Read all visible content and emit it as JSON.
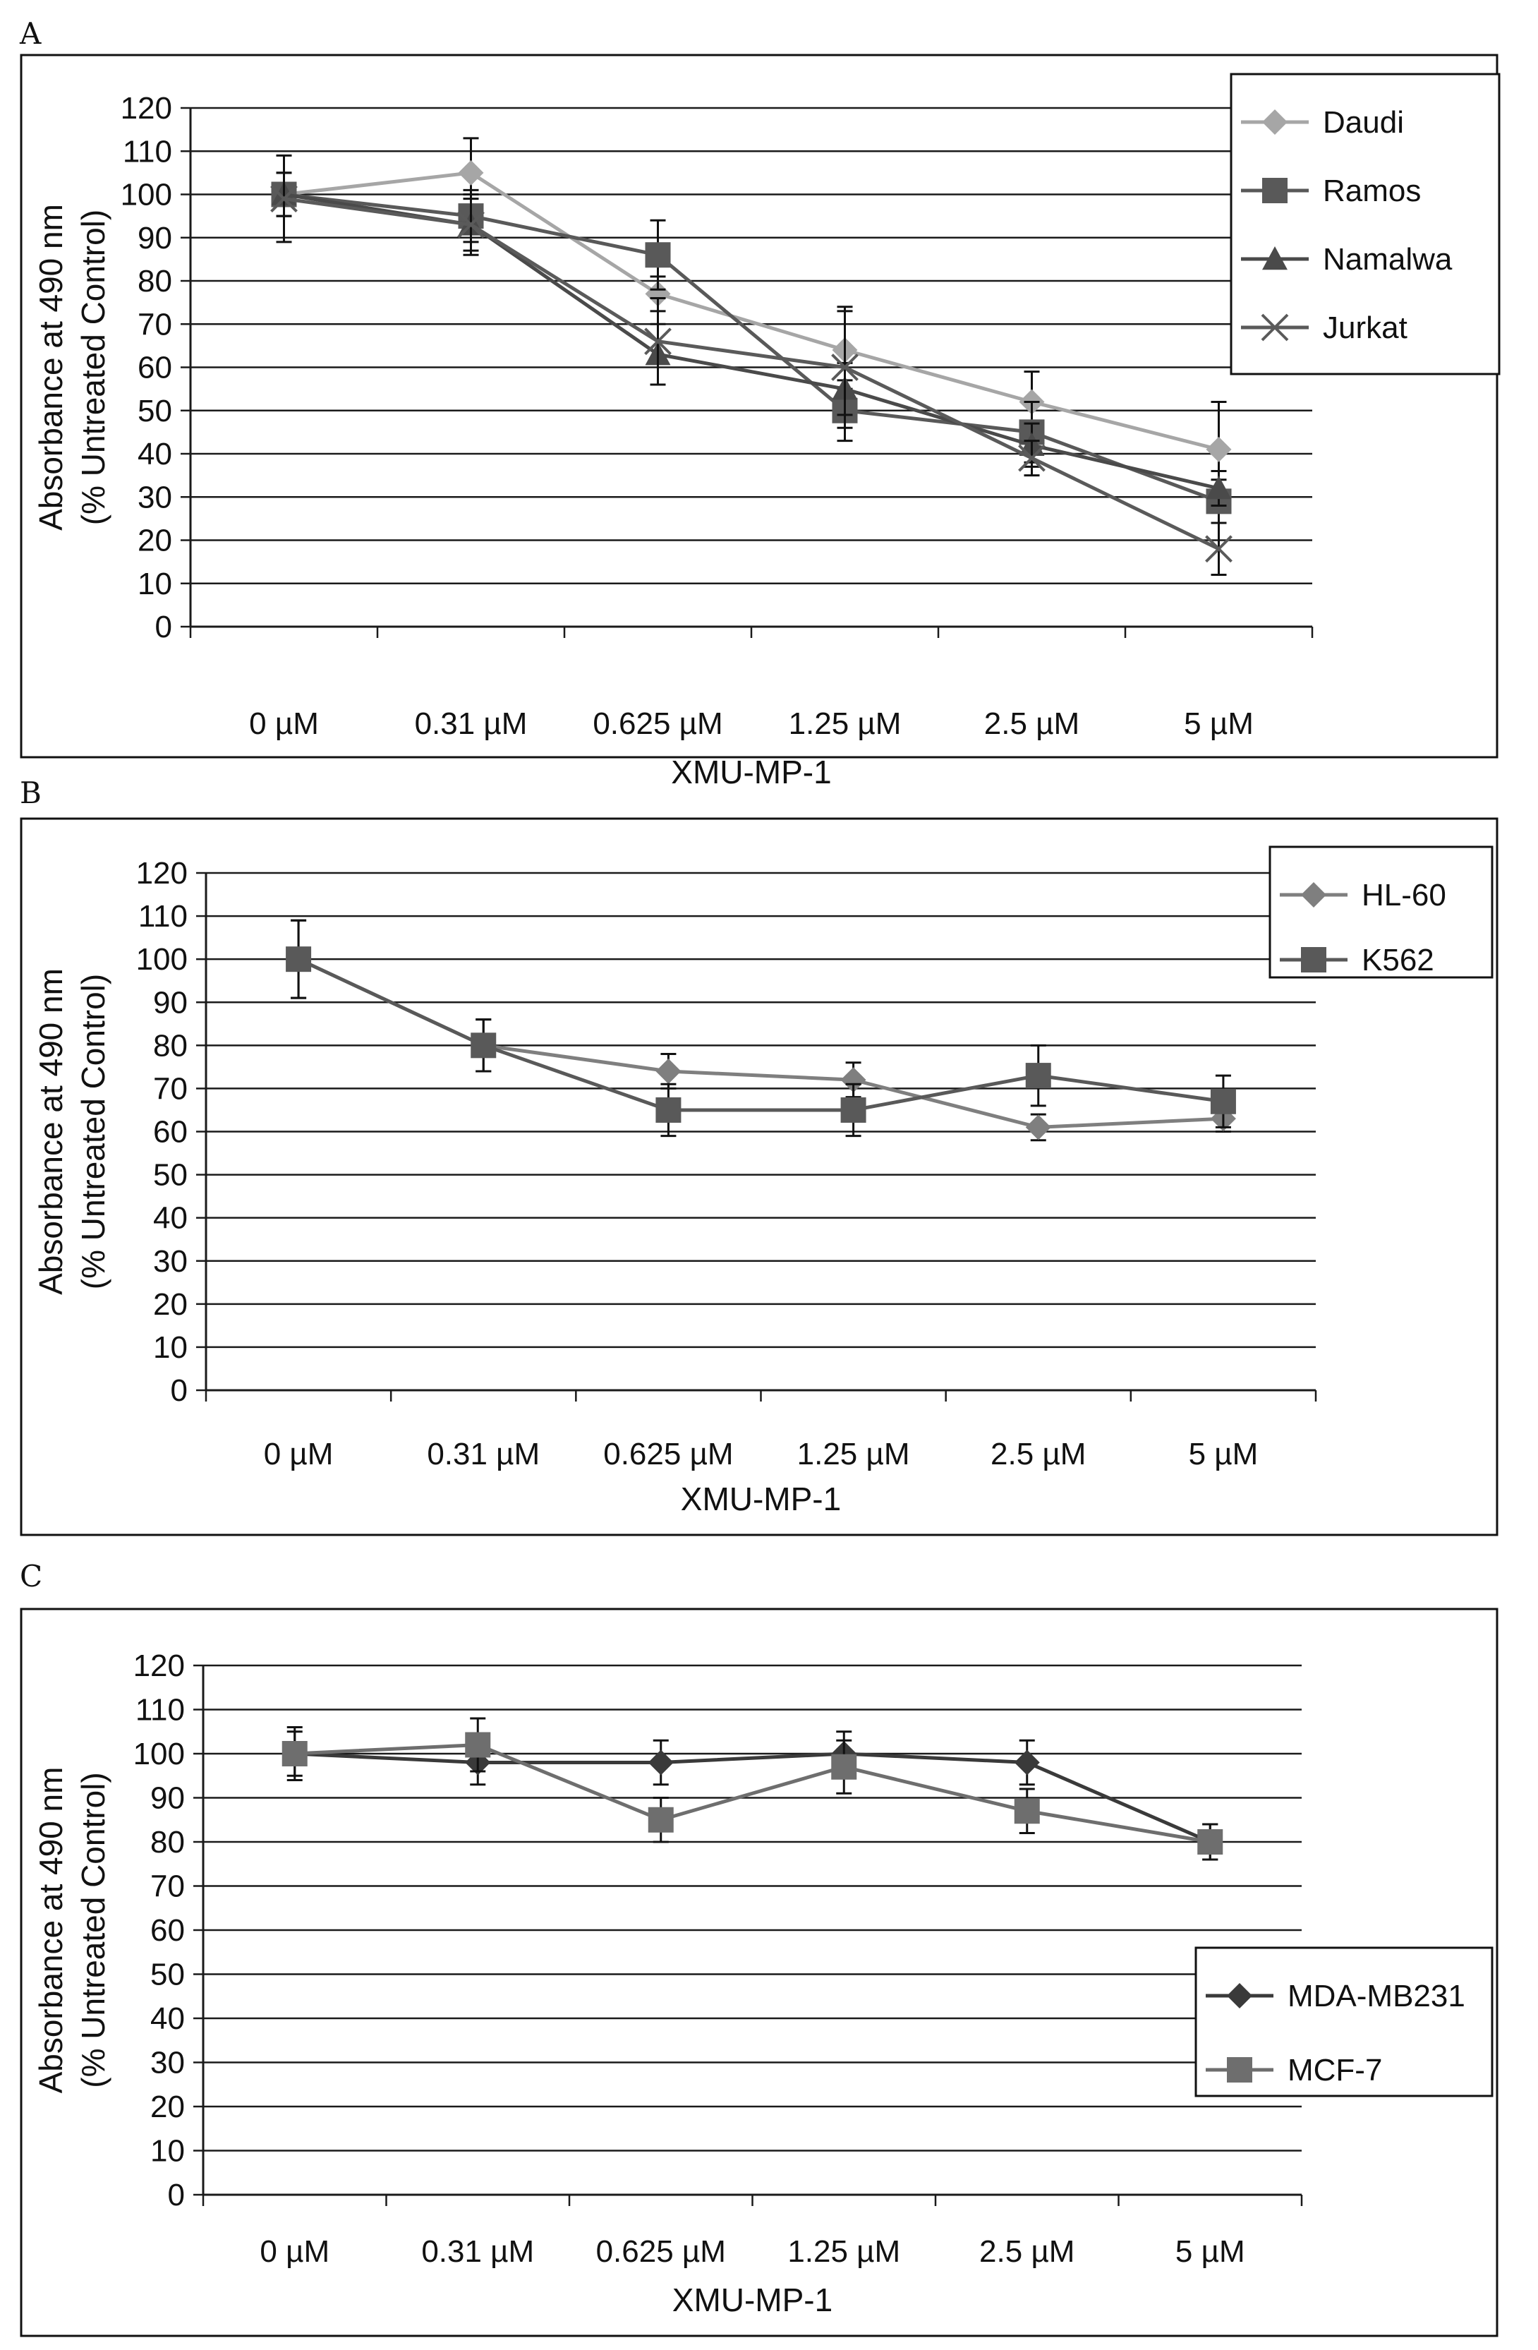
{
  "chart_data": [
    {
      "panel": "A",
      "type": "line",
      "xlabel": "XMU-MP-1",
      "ylabel": "Absorbance at 490 nm",
      "ylabel2": "(% Untreated Control)",
      "ylim": [
        0,
        120
      ],
      "yticks": [
        0,
        10,
        20,
        30,
        40,
        50,
        60,
        70,
        80,
        90,
        100,
        110,
        120
      ],
      "categories": [
        "0 µM",
        "0.31 µM",
        "0.625 µM",
        "1.25 µM",
        "2.5 µM",
        "5 µM"
      ],
      "legend_position": "top-right",
      "series": [
        {
          "name": "Daudi",
          "marker": "diamond",
          "color": "#a6a6a6",
          "values": [
            100,
            105,
            77,
            64,
            52,
            41
          ],
          "errors": [
            5,
            8,
            4,
            9,
            7,
            11
          ]
        },
        {
          "name": "Ramos",
          "marker": "square",
          "color": "#595959",
          "values": [
            100,
            95,
            86,
            50,
            45,
            29
          ],
          "errors": [
            5,
            6,
            8,
            7,
            7,
            5
          ]
        },
        {
          "name": "Namalwa",
          "marker": "triangle",
          "color": "#4a4a4a",
          "values": [
            100,
            93,
            63,
            55,
            42,
            32
          ],
          "errors": [
            5,
            6,
            7,
            6,
            5,
            4
          ]
        },
        {
          "name": "Jurkat",
          "marker": "x",
          "color": "#5a5a5a",
          "values": [
            99,
            93,
            66,
            60,
            39,
            18
          ],
          "errors": [
            10,
            7,
            10,
            14,
            4,
            6
          ]
        }
      ]
    },
    {
      "panel": "B",
      "type": "line",
      "xlabel": "XMU-MP-1",
      "ylabel": "Absorbance at 490 nm",
      "ylabel2": "(% Untreated Control)",
      "ylim": [
        0,
        120
      ],
      "yticks": [
        0,
        10,
        20,
        30,
        40,
        50,
        60,
        70,
        80,
        90,
        100,
        110,
        120
      ],
      "categories": [
        "0 µM",
        "0.31 µM",
        "0.625 µM",
        "1.25 µM",
        "2.5 µM",
        "5 µM"
      ],
      "legend_position": "top-right",
      "series": [
        {
          "name": "HL-60",
          "marker": "diamond",
          "color": "#7f7f7f",
          "values": [
            100,
            80,
            74,
            72,
            61,
            63
          ],
          "errors": [
            9,
            6,
            4,
            4,
            3,
            3
          ]
        },
        {
          "name": "K562",
          "marker": "square",
          "color": "#595959",
          "values": [
            100,
            80,
            65,
            65,
            73,
            67
          ],
          "errors": [
            9,
            6,
            6,
            6,
            7,
            6
          ]
        }
      ]
    },
    {
      "panel": "C",
      "type": "line",
      "xlabel": "XMU-MP-1",
      "ylabel": "Absorbance at 490 nm",
      "ylabel2": "(% Untreated Control)",
      "ylim": [
        0,
        120
      ],
      "yticks": [
        0,
        10,
        20,
        30,
        40,
        50,
        60,
        70,
        80,
        90,
        100,
        110,
        120
      ],
      "categories": [
        "0 µM",
        "0.31 µM",
        "0.625 µM",
        "1.25 µM",
        "2.5 µM",
        "5 µM"
      ],
      "legend_position": "bottom-right",
      "series": [
        {
          "name": "MDA-MB231",
          "marker": "diamond",
          "color": "#3a3a3a",
          "values": [
            100,
            98,
            98,
            100,
            98,
            80
          ],
          "errors": [
            6,
            5,
            5,
            5,
            5,
            4
          ]
        },
        {
          "name": "MCF-7",
          "marker": "square",
          "color": "#6e6e6e",
          "values": [
            100,
            102,
            85,
            97,
            87,
            80
          ],
          "errors": [
            5,
            6,
            5,
            6,
            5,
            4
          ]
        }
      ]
    }
  ]
}
